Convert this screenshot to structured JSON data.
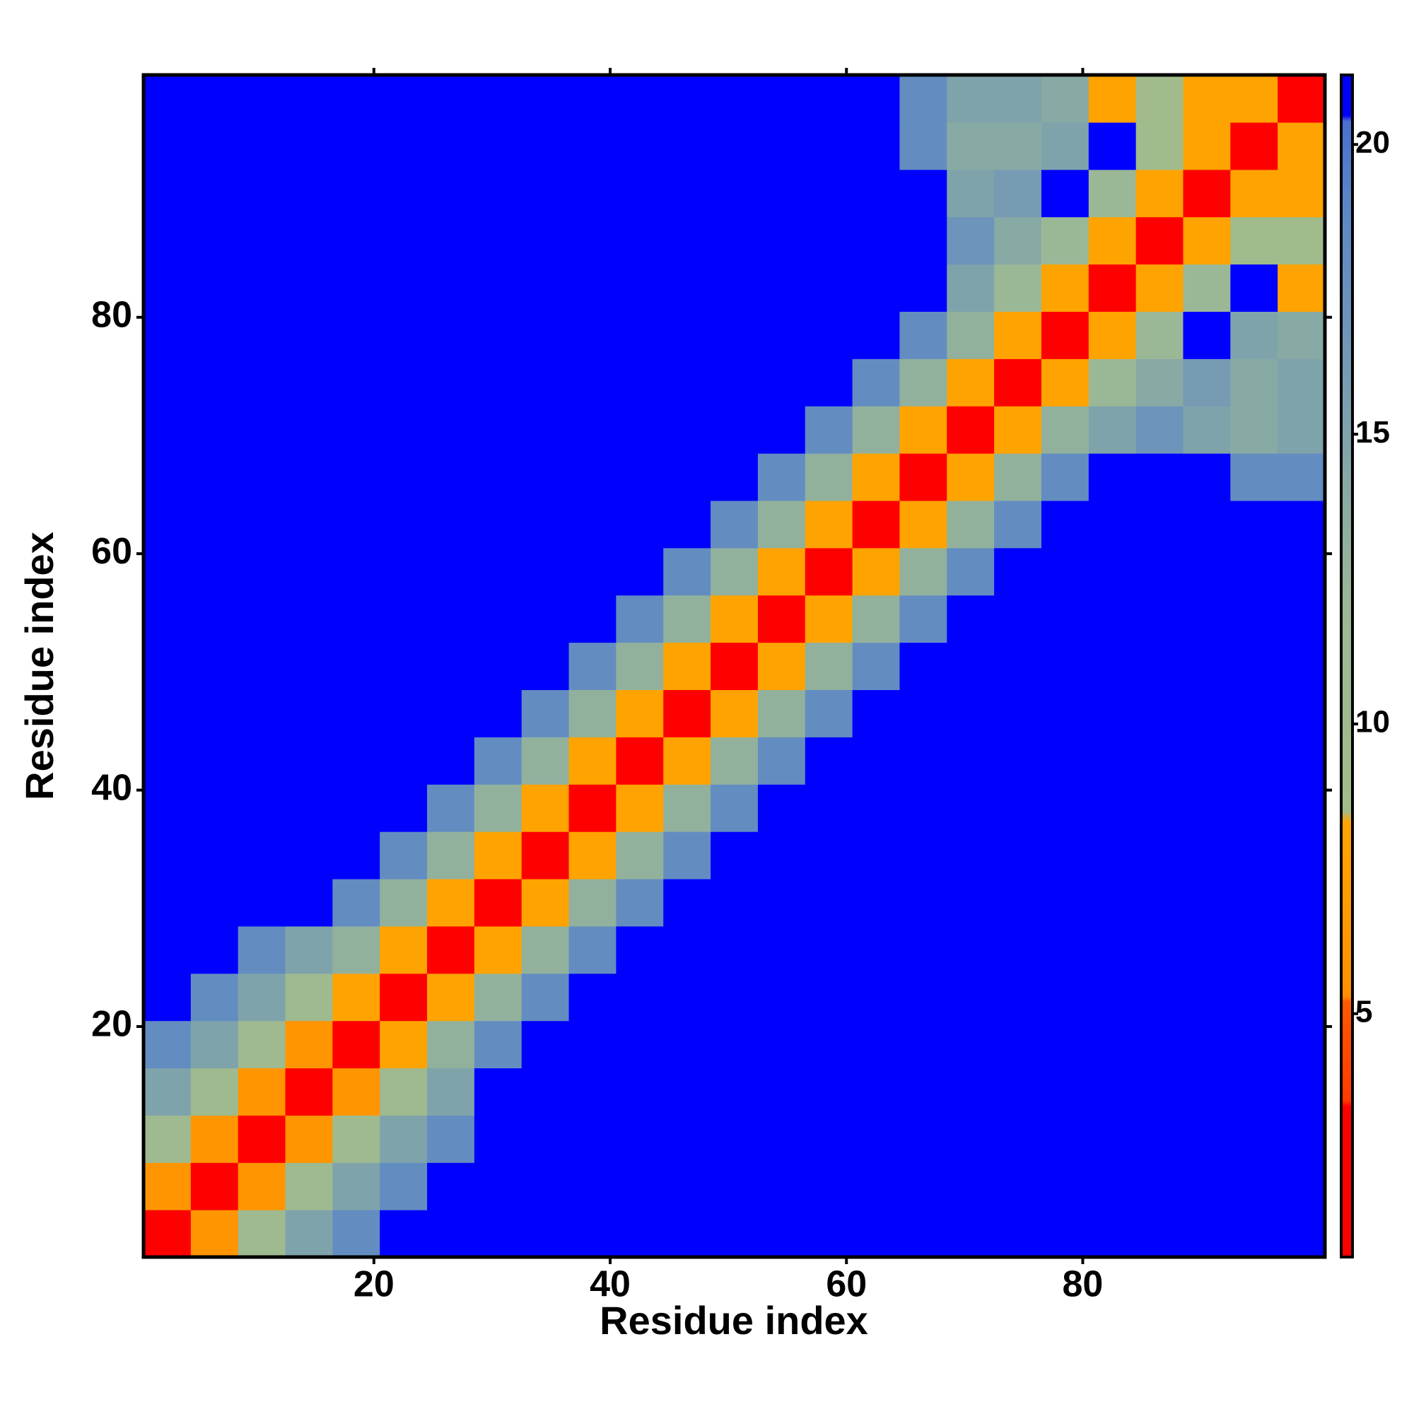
{
  "chart_data": {
    "type": "heatmap",
    "x_label": "Residue index",
    "y_label": "Residue index",
    "xbins": [
      0.5,
      4.5,
      8.5,
      12.5,
      16.5,
      20.5,
      24.5,
      28.5,
      32.5,
      36.5,
      40.5,
      44.5,
      48.5,
      52.5,
      56.5,
      60.5,
      64.5,
      68.5,
      72.5,
      76.5,
      80.5,
      84.5,
      88.5,
      92.5,
      96.5,
      100.5
    ],
    "ybins": [
      0.5,
      4.5,
      8.5,
      12.5,
      16.5,
      20.5,
      24.5,
      28.5,
      32.5,
      36.5,
      40.5,
      44.5,
      48.5,
      52.5,
      56.5,
      60.5,
      64.5,
      68.5,
      72.5,
      76.5,
      80.5,
      84.5,
      88.5,
      92.5,
      96.5,
      100.5
    ],
    "xlim": [
      0.5,
      100.5
    ],
    "ylim": [
      0.5,
      100.5
    ],
    "xticks": [
      20,
      40,
      60,
      80
    ],
    "yticks": [
      20,
      40,
      60,
      80
    ],
    "zlim": [
      0.8,
      21.2
    ],
    "zticks": [
      5,
      10,
      15,
      20
    ],
    "colorscale": [
      [
        0.8,
        "#ff0000"
      ],
      [
        3.4,
        "#ff0000"
      ],
      [
        3.5,
        "#ff3a00"
      ],
      [
        5.2,
        "#ff5a00"
      ],
      [
        5.3,
        "#ff9000"
      ],
      [
        8.3,
        "#ffa500"
      ],
      [
        8.5,
        "#a2bc8a"
      ],
      [
        12,
        "#9bb896"
      ],
      [
        19,
        "#5a86c8"
      ],
      [
        20.4,
        "#4a6fd0"
      ],
      [
        20.5,
        "#0000ff"
      ],
      [
        21.2,
        "#0000ff"
      ]
    ],
    "z": [
      [
        2,
        6,
        10,
        15,
        18,
        21,
        21,
        21,
        21,
        21,
        21,
        21,
        21,
        21,
        21,
        21,
        21,
        21,
        21,
        21,
        21,
        21,
        21,
        21,
        21
      ],
      [
        6,
        2,
        6,
        10,
        15,
        18,
        21,
        21,
        21,
        21,
        21,
        21,
        21,
        21,
        21,
        21,
        21,
        21,
        21,
        21,
        21,
        21,
        21,
        21,
        21
      ],
      [
        10,
        6,
        2,
        6,
        10,
        15,
        18,
        21,
        21,
        21,
        21,
        21,
        21,
        21,
        21,
        21,
        21,
        21,
        21,
        21,
        21,
        21,
        21,
        21,
        21
      ],
      [
        15,
        10,
        6,
        2,
        6,
        10,
        15,
        21,
        21,
        21,
        21,
        21,
        21,
        21,
        21,
        21,
        21,
        21,
        21,
        21,
        21,
        21,
        21,
        21,
        21
      ],
      [
        18,
        15,
        10,
        6,
        2,
        8,
        13,
        18,
        21,
        21,
        21,
        21,
        21,
        21,
        21,
        21,
        21,
        21,
        21,
        21,
        21,
        21,
        21,
        21,
        21
      ],
      [
        21,
        18,
        15,
        10,
        8,
        2,
        8,
        13,
        18,
        21,
        21,
        21,
        21,
        21,
        21,
        21,
        21,
        21,
        21,
        21,
        21,
        21,
        21,
        21,
        21
      ],
      [
        21,
        21,
        18,
        15,
        13,
        8,
        2,
        8,
        13,
        18,
        21,
        21,
        21,
        21,
        21,
        21,
        21,
        21,
        21,
        21,
        21,
        21,
        21,
        21,
        21
      ],
      [
        21,
        21,
        21,
        21,
        18,
        13,
        8,
        2,
        8,
        13,
        18,
        21,
        21,
        21,
        21,
        21,
        21,
        21,
        21,
        21,
        21,
        21,
        21,
        21,
        21
      ],
      [
        21,
        21,
        21,
        21,
        21,
        18,
        13,
        8,
        2,
        8,
        13,
        18,
        21,
        21,
        21,
        21,
        21,
        21,
        21,
        21,
        21,
        21,
        21,
        21,
        21
      ],
      [
        21,
        21,
        21,
        21,
        21,
        21,
        18,
        13,
        8,
        2,
        8,
        13,
        18,
        21,
        21,
        21,
        21,
        21,
        21,
        21,
        21,
        21,
        21,
        21,
        21
      ],
      [
        21,
        21,
        21,
        21,
        21,
        21,
        21,
        18,
        13,
        8,
        2,
        8,
        13,
        18,
        21,
        21,
        21,
        21,
        21,
        21,
        21,
        21,
        21,
        21,
        21
      ],
      [
        21,
        21,
        21,
        21,
        21,
        21,
        21,
        21,
        18,
        13,
        8,
        2,
        8,
        13,
        18,
        21,
        21,
        21,
        21,
        21,
        21,
        21,
        21,
        21,
        21
      ],
      [
        21,
        21,
        21,
        21,
        21,
        21,
        21,
        21,
        21,
        18,
        13,
        8,
        2,
        8,
        13,
        18,
        21,
        21,
        21,
        21,
        21,
        21,
        21,
        21,
        21
      ],
      [
        21,
        21,
        21,
        21,
        21,
        21,
        21,
        21,
        21,
        21,
        18,
        13,
        8,
        2,
        8,
        13,
        18,
        21,
        21,
        21,
        21,
        21,
        21,
        21,
        21
      ],
      [
        21,
        21,
        21,
        21,
        21,
        21,
        21,
        21,
        21,
        21,
        21,
        18,
        13,
        8,
        2,
        8,
        13,
        18,
        21,
        21,
        21,
        21,
        21,
        21,
        21
      ],
      [
        21,
        21,
        21,
        21,
        21,
        21,
        21,
        21,
        21,
        21,
        21,
        21,
        18,
        13,
        8,
        2,
        8,
        13,
        18,
        21,
        21,
        21,
        21,
        21,
        21
      ],
      [
        21,
        21,
        21,
        21,
        21,
        21,
        21,
        21,
        21,
        21,
        21,
        21,
        21,
        18,
        13,
        8,
        2,
        8,
        13,
        18,
        21,
        21,
        21,
        18,
        18
      ],
      [
        21,
        21,
        21,
        21,
        21,
        21,
        21,
        21,
        21,
        21,
        21,
        21,
        21,
        21,
        18,
        13,
        8,
        2,
        8,
        13,
        15,
        17,
        15,
        14,
        15
      ],
      [
        21,
        21,
        21,
        21,
        21,
        21,
        21,
        21,
        21,
        21,
        21,
        21,
        21,
        21,
        21,
        18,
        13,
        8,
        2,
        8,
        12,
        14,
        16,
        14,
        15
      ],
      [
        21,
        21,
        21,
        21,
        21,
        21,
        21,
        21,
        21,
        21,
        21,
        21,
        21,
        21,
        21,
        21,
        18,
        13,
        8,
        2,
        8,
        12,
        21,
        15,
        14
      ],
      [
        21,
        21,
        21,
        21,
        21,
        21,
        21,
        21,
        21,
        21,
        21,
        21,
        21,
        21,
        21,
        21,
        21,
        15,
        12,
        8,
        2,
        8,
        12,
        21,
        8
      ],
      [
        21,
        21,
        21,
        21,
        21,
        21,
        21,
        21,
        21,
        21,
        21,
        21,
        21,
        21,
        21,
        21,
        21,
        17,
        14,
        12,
        8,
        2,
        8,
        9,
        9
      ],
      [
        21,
        21,
        21,
        21,
        21,
        21,
        21,
        21,
        21,
        21,
        21,
        21,
        21,
        21,
        21,
        21,
        21,
        15,
        16,
        21,
        12,
        8,
        2,
        8,
        8
      ],
      [
        21,
        21,
        21,
        21,
        21,
        21,
        21,
        21,
        21,
        21,
        21,
        21,
        21,
        21,
        21,
        21,
        18,
        14,
        14,
        15,
        21,
        9,
        8,
        2,
        8
      ],
      [
        21,
        21,
        21,
        21,
        21,
        21,
        21,
        21,
        21,
        21,
        21,
        21,
        21,
        21,
        21,
        21,
        18,
        15,
        15,
        14,
        8,
        9,
        8,
        8,
        2
      ]
    ]
  }
}
